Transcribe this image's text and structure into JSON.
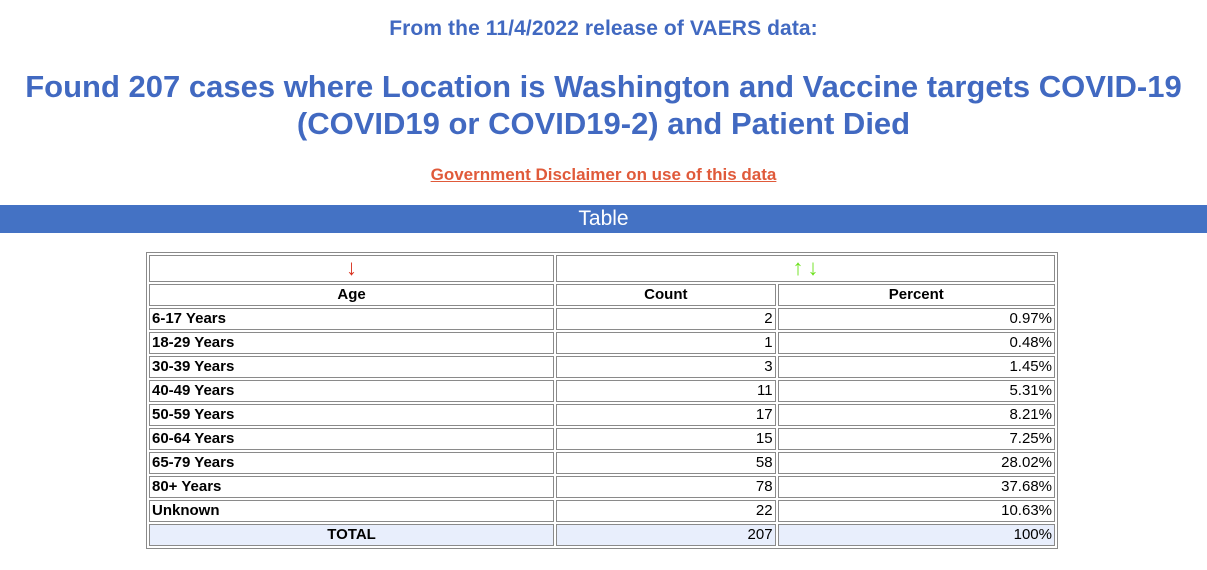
{
  "release_line": "From the 11/4/2022 release of VAERS data:",
  "headline_line1": "Found 207 cases where Location is Washington and Vaccine targets COVID-19",
  "headline_line2": "(COVID19 or COVID19-2) and Patient Died",
  "disclaimer_link": "Government Disclaimer on use of this data",
  "table_bar_label": "Table",
  "sort_icons": {
    "age": "down-arrow-icon",
    "count_up": "up-arrow-icon",
    "count_down": "down-arrow-icon",
    "arrow_up_glyph": "↑",
    "arrow_down_glyph": "↓"
  },
  "colors": {
    "heading": "#4169c1",
    "bar": "#4472c4",
    "link": "#e05a3a",
    "sort_active": "#d9321f",
    "sort_inactive": "#6ee21e",
    "total_row": "#e8eefc"
  },
  "columns": [
    "Age",
    "Count",
    "Percent"
  ],
  "rows": [
    {
      "age": "6-17 Years",
      "count": "2",
      "percent": "0.97%"
    },
    {
      "age": "18-29 Years",
      "count": "1",
      "percent": "0.48%"
    },
    {
      "age": "30-39 Years",
      "count": "3",
      "percent": "1.45%"
    },
    {
      "age": "40-49 Years",
      "count": "11",
      "percent": "5.31%"
    },
    {
      "age": "50-59 Years",
      "count": "17",
      "percent": "8.21%"
    },
    {
      "age": "60-64 Years",
      "count": "15",
      "percent": "7.25%"
    },
    {
      "age": "65-79 Years",
      "count": "58",
      "percent": "28.02%"
    },
    {
      "age": "80+ Years",
      "count": "78",
      "percent": "37.68%"
    },
    {
      "age": "Unknown",
      "count": "22",
      "percent": "10.63%"
    }
  ],
  "total": {
    "label": "TOTAL",
    "count": "207",
    "percent": "100%"
  }
}
